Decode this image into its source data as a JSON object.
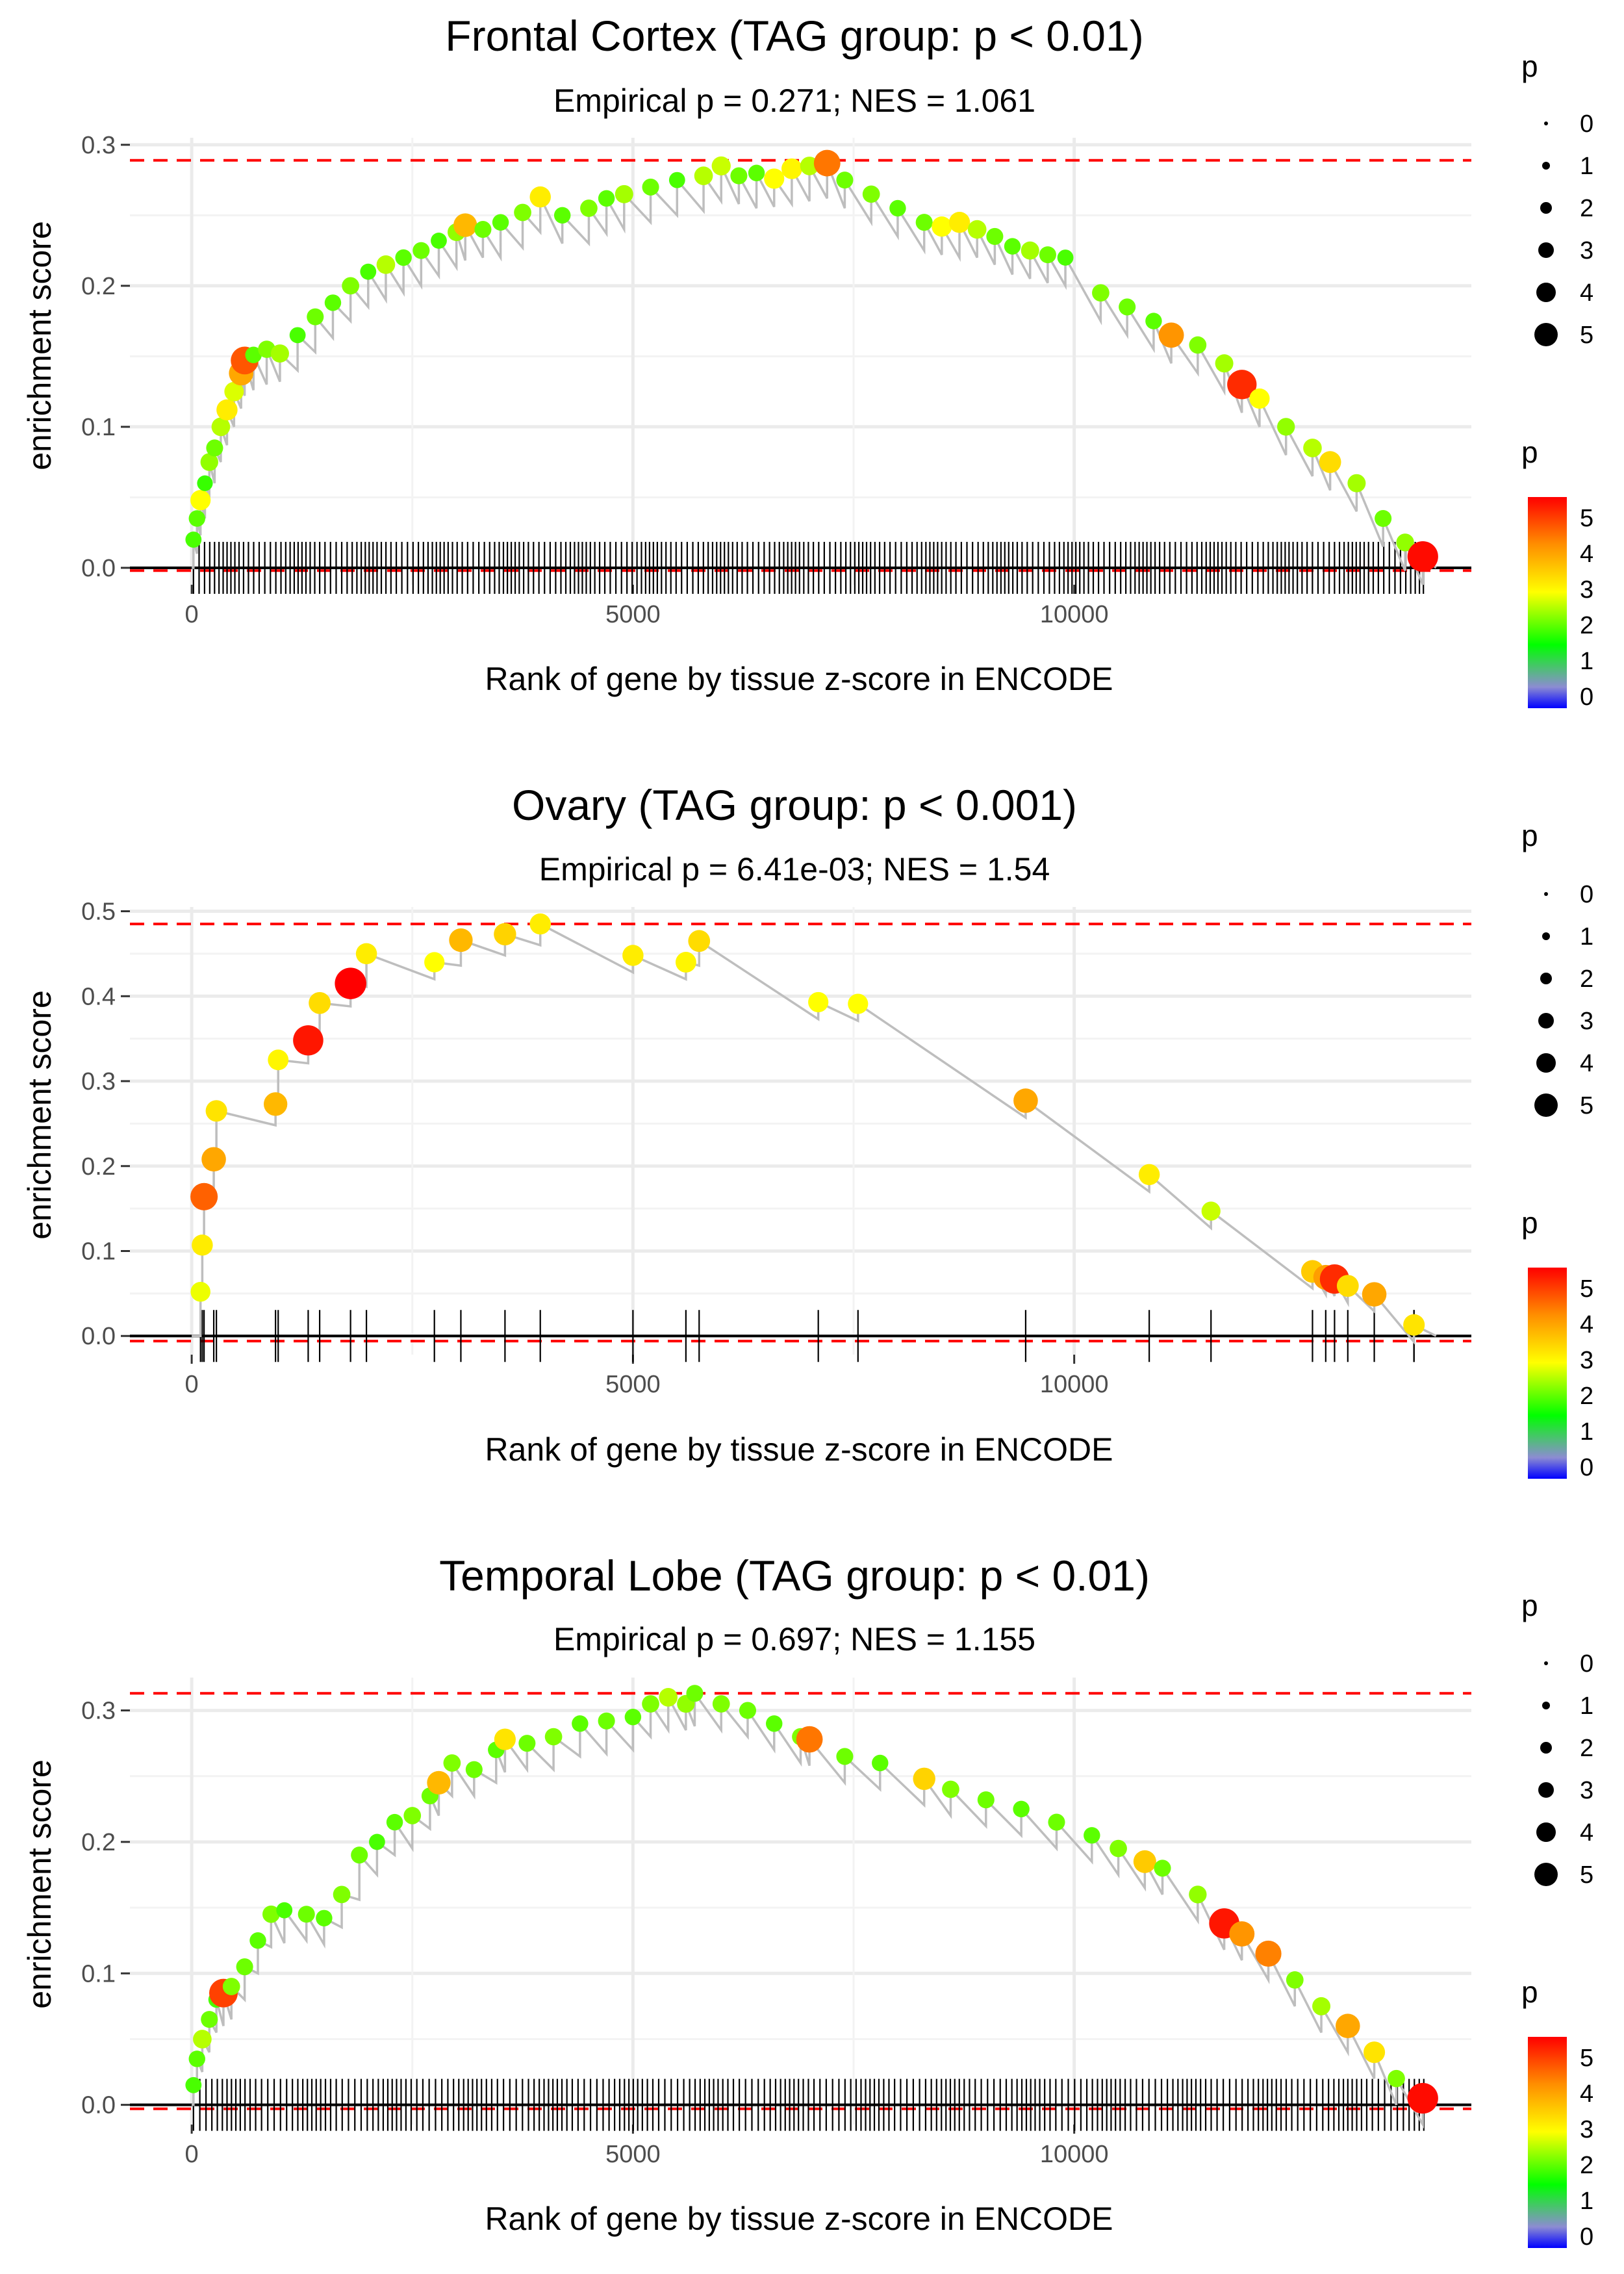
{
  "colors": {
    "threshold_line": "#ff0000",
    "path_line": "#bebebe",
    "rug": "#000000",
    "grid": "#ebebeb",
    "colorscale": [
      "#0000ff",
      "#8c8cd2",
      "#00ff00",
      "#ffff00",
      "#ff8c00",
      "#ff0000"
    ]
  },
  "chart_data": [
    {
      "type": "scatter",
      "title": "Frontal Cortex (TAG group: p < 0.01)",
      "subtitle": "Empirical p = 0.271; NES = 1.061",
      "xlabel": "Rank of gene by tissue z-score in ENCODE",
      "ylabel": "enrichment score",
      "xlim": [
        -700,
        14500
      ],
      "ylim": [
        -0.012,
        0.305
      ],
      "xticks": [
        0,
        5000,
        10000
      ],
      "yticks": [
        0.0,
        0.1,
        0.2,
        0.3
      ],
      "max_es": 0.289,
      "min_line": -0.002,
      "legend_size": {
        "title": "p",
        "labels": [
          "0",
          "1",
          "2",
          "3",
          "4",
          "5"
        ]
      },
      "legend_color": {
        "title": "p",
        "labels": [
          "5",
          "4",
          "3",
          "2",
          "1",
          "0"
        ]
      },
      "rug_count": 260,
      "series": [
        {
          "name": "enrichment",
          "points": [
            [
              20,
              0.02,
              2.0
            ],
            [
              60,
              0.035,
              2.1
            ],
            [
              100,
              0.048,
              3.0
            ],
            [
              150,
              0.06,
              1.9
            ],
            [
              200,
              0.075,
              2.4
            ],
            [
              260,
              0.085,
              2.2
            ],
            [
              330,
              0.1,
              2.6
            ],
            [
              400,
              0.112,
              3.2
            ],
            [
              480,
              0.125,
              2.8
            ],
            [
              560,
              0.138,
              4.0
            ],
            [
              600,
              0.147,
              4.8
            ],
            [
              700,
              0.151,
              2.1
            ],
            [
              850,
              0.155,
              2.3
            ],
            [
              1000,
              0.152,
              2.5
            ],
            [
              1200,
              0.165,
              2.0
            ],
            [
              1400,
              0.178,
              2.2
            ],
            [
              1600,
              0.188,
              2.1
            ],
            [
              1800,
              0.2,
              2.3
            ],
            [
              2000,
              0.21,
              2.0
            ],
            [
              2200,
              0.215,
              2.6
            ],
            [
              2400,
              0.22,
              2.1
            ],
            [
              2600,
              0.225,
              2.2
            ],
            [
              2800,
              0.232,
              2.0
            ],
            [
              3000,
              0.238,
              2.4
            ],
            [
              3100,
              0.243,
              3.8
            ],
            [
              3300,
              0.24,
              2.2
            ],
            [
              3500,
              0.245,
              2.1
            ],
            [
              3750,
              0.252,
              2.3
            ],
            [
              3950,
              0.263,
              3.2
            ],
            [
              4200,
              0.25,
              2.1
            ],
            [
              4500,
              0.255,
              2.3
            ],
            [
              4700,
              0.262,
              2.1
            ],
            [
              4900,
              0.265,
              2.5
            ],
            [
              5200,
              0.27,
              2.2
            ],
            [
              5500,
              0.275,
              2.0
            ],
            [
              5800,
              0.278,
              2.6
            ],
            [
              6000,
              0.285,
              2.7
            ],
            [
              6200,
              0.278,
              2.2
            ],
            [
              6400,
              0.28,
              2.1
            ],
            [
              6600,
              0.276,
              3.0
            ],
            [
              6800,
              0.283,
              3.1
            ],
            [
              7000,
              0.285,
              2.6
            ],
            [
              7200,
              0.287,
              4.5
            ],
            [
              7400,
              0.275,
              2.2
            ],
            [
              7700,
              0.265,
              2.3
            ],
            [
              8000,
              0.255,
              2.1
            ],
            [
              8300,
              0.245,
              2.2
            ],
            [
              8500,
              0.242,
              3.0
            ],
            [
              8700,
              0.245,
              3.2
            ],
            [
              8900,
              0.24,
              2.6
            ],
            [
              9100,
              0.235,
              2.2
            ],
            [
              9300,
              0.228,
              2.1
            ],
            [
              9500,
              0.225,
              2.5
            ],
            [
              9700,
              0.222,
              2.2
            ],
            [
              9900,
              0.22,
              2.0
            ],
            [
              10300,
              0.195,
              2.3
            ],
            [
              10600,
              0.185,
              2.2
            ],
            [
              10900,
              0.175,
              2.1
            ],
            [
              11100,
              0.165,
              4.2
            ],
            [
              11400,
              0.158,
              2.3
            ],
            [
              11700,
              0.145,
              2.5
            ],
            [
              11900,
              0.13,
              5.2
            ],
            [
              12100,
              0.12,
              3.0
            ],
            [
              12400,
              0.1,
              2.4
            ],
            [
              12700,
              0.085,
              2.6
            ],
            [
              12900,
              0.075,
              3.4
            ],
            [
              13200,
              0.06,
              2.5
            ],
            [
              13500,
              0.035,
              2.2
            ],
            [
              13750,
              0.018,
              2.4
            ],
            [
              13950,
              0.008,
              5.5
            ]
          ]
        }
      ]
    },
    {
      "type": "scatter",
      "title": "Ovary (TAG group: p < 0.001)",
      "subtitle": "Empirical p = 6.41e-03; NES = 1.54",
      "xlabel": "Rank of gene by tissue z-score in ENCODE",
      "ylabel": "enrichment score",
      "xlim": [
        -700,
        14500
      ],
      "ylim": [
        -0.022,
        0.505
      ],
      "xticks": [
        0,
        5000,
        10000
      ],
      "yticks": [
        0.0,
        0.1,
        0.2,
        0.3,
        0.4,
        0.5
      ],
      "max_es": 0.485,
      "min_line": -0.006,
      "legend_size": {
        "title": "p",
        "labels": [
          "0",
          "1",
          "2",
          "3",
          "4",
          "5"
        ]
      },
      "legend_color": {
        "title": "p",
        "labels": [
          "5",
          "4",
          "3",
          "2",
          "1",
          "0"
        ]
      },
      "rug_count": 30,
      "series": [
        {
          "name": "enrichment",
          "points": [
            [
              100,
              0.052,
              2.9
            ],
            [
              120,
              0.107,
              3.2
            ],
            [
              140,
              0.164,
              4.7
            ],
            [
              250,
              0.208,
              4.0
            ],
            [
              280,
              0.265,
              3.3
            ],
            [
              950,
              0.273,
              3.8
            ],
            [
              980,
              0.325,
              3.1
            ],
            [
              1320,
              0.348,
              5.4
            ],
            [
              1450,
              0.392,
              3.4
            ],
            [
              1800,
              0.415,
              5.7
            ],
            [
              1980,
              0.45,
              3.2
            ],
            [
              2750,
              0.44,
              3.0
            ],
            [
              3050,
              0.466,
              3.8
            ],
            [
              3550,
              0.473,
              3.5
            ],
            [
              3950,
              0.485,
              3.2
            ],
            [
              5000,
              0.448,
              3.2
            ],
            [
              5600,
              0.44,
              3.1
            ],
            [
              5750,
              0.465,
              3.4
            ],
            [
              7100,
              0.393,
              3.0
            ],
            [
              7550,
              0.391,
              3.0
            ],
            [
              9450,
              0.277,
              4.0
            ],
            [
              10850,
              0.19,
              3.2
            ],
            [
              11550,
              0.147,
              2.7
            ],
            [
              12700,
              0.076,
              3.6
            ],
            [
              12850,
              0.069,
              4.1
            ],
            [
              12950,
              0.067,
              5.2
            ],
            [
              13100,
              0.059,
              3.4
            ],
            [
              13400,
              0.049,
              4.0
            ],
            [
              13850,
              0.013,
              3.3
            ]
          ]
        }
      ]
    },
    {
      "type": "scatter",
      "title": "Temporal Lobe (TAG group: p < 0.01)",
      "subtitle": "Empirical p = 0.697; NES = 1.155",
      "xlabel": "Rank of gene by tissue z-score in ENCODE",
      "ylabel": "enrichment score",
      "xlim": [
        -700,
        14500
      ],
      "ylim": [
        -0.015,
        0.325
      ],
      "xticks": [
        0,
        5000,
        10000
      ],
      "yticks": [
        0.0,
        0.1,
        0.2,
        0.3
      ],
      "max_es": 0.313,
      "min_line": -0.003,
      "legend_size": {
        "title": "p",
        "labels": [
          "0",
          "1",
          "2",
          "3",
          "4",
          "5"
        ]
      },
      "legend_color": {
        "title": "p",
        "labels": [
          "5",
          "4",
          "3",
          "2",
          "1",
          "0"
        ]
      },
      "rug_count": 230,
      "series": [
        {
          "name": "enrichment",
          "points": [
            [
              20,
              0.015,
              2.0
            ],
            [
              60,
              0.035,
              2.1
            ],
            [
              120,
              0.05,
              2.6
            ],
            [
              200,
              0.065,
              2.2
            ],
            [
              280,
              0.08,
              2.0
            ],
            [
              360,
              0.085,
              5.0
            ],
            [
              450,
              0.09,
              2.3
            ],
            [
              600,
              0.105,
              2.2
            ],
            [
              750,
              0.125,
              2.1
            ],
            [
              900,
              0.145,
              2.3
            ],
            [
              1050,
              0.148,
              2.0
            ],
            [
              1300,
              0.145,
              2.2
            ],
            [
              1500,
              0.142,
              2.1
            ],
            [
              1700,
              0.16,
              2.3
            ],
            [
              1900,
              0.19,
              2.2
            ],
            [
              2100,
              0.2,
              2.0
            ],
            [
              2300,
              0.215,
              2.1
            ],
            [
              2500,
              0.22,
              2.3
            ],
            [
              2700,
              0.235,
              2.2
            ],
            [
              2800,
              0.245,
              3.8
            ],
            [
              2950,
              0.26,
              2.3
            ],
            [
              3200,
              0.255,
              2.2
            ],
            [
              3450,
              0.27,
              2.1
            ],
            [
              3550,
              0.278,
              3.3
            ],
            [
              3800,
              0.275,
              2.2
            ],
            [
              4100,
              0.28,
              2.3
            ],
            [
              4400,
              0.29,
              2.1
            ],
            [
              4700,
              0.292,
              2.2
            ],
            [
              5000,
              0.295,
              2.1
            ],
            [
              5200,
              0.305,
              2.3
            ],
            [
              5400,
              0.31,
              2.6
            ],
            [
              5600,
              0.305,
              2.4
            ],
            [
              5700,
              0.313,
              2.2
            ],
            [
              6000,
              0.305,
              2.3
            ],
            [
              6300,
              0.3,
              2.2
            ],
            [
              6600,
              0.29,
              2.1
            ],
            [
              6900,
              0.28,
              2.3
            ],
            [
              7000,
              0.278,
              4.5
            ],
            [
              7400,
              0.265,
              2.2
            ],
            [
              7800,
              0.26,
              2.1
            ],
            [
              8300,
              0.248,
              3.5
            ],
            [
              8600,
              0.24,
              2.3
            ],
            [
              9000,
              0.232,
              2.2
            ],
            [
              9400,
              0.225,
              2.1
            ],
            [
              9800,
              0.215,
              2.2
            ],
            [
              10200,
              0.205,
              2.1
            ],
            [
              10500,
              0.195,
              2.3
            ],
            [
              10800,
              0.185,
              3.6
            ],
            [
              11000,
              0.18,
              2.2
            ],
            [
              11400,
              0.16,
              2.4
            ],
            [
              11700,
              0.138,
              5.4
            ],
            [
              11900,
              0.13,
              4.2
            ],
            [
              12200,
              0.115,
              4.4
            ],
            [
              12500,
              0.095,
              2.3
            ],
            [
              12800,
              0.075,
              2.5
            ],
            [
              13100,
              0.06,
              4.0
            ],
            [
              13400,
              0.04,
              3.3
            ],
            [
              13650,
              0.02,
              2.3
            ],
            [
              13950,
              0.005,
              5.5
            ]
          ]
        }
      ]
    }
  ]
}
